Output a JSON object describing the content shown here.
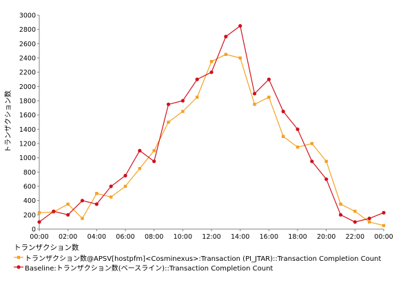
{
  "chart_data": {
    "type": "line",
    "ylabel": "トランザクション数",
    "ylim": [
      0,
      3000
    ],
    "yticks": [
      "0",
      "200",
      "400",
      "600",
      "800",
      "1000",
      "1200",
      "1400",
      "1600",
      "1800",
      "2000",
      "2200",
      "2400",
      "2600",
      "2800",
      "3000"
    ],
    "xticks": [
      "00:00",
      "02:00",
      "04:00",
      "06:00",
      "08:00",
      "10:00",
      "12:00",
      "14:00",
      "16:00",
      "18:00",
      "20:00",
      "22:00",
      "00:00"
    ],
    "x": [
      0,
      1,
      2,
      3,
      4,
      5,
      6,
      7,
      8,
      9,
      10,
      11,
      12,
      13,
      14,
      15,
      16,
      17,
      18,
      19,
      20,
      21,
      22,
      23,
      24
    ],
    "grid": false,
    "legend": {
      "title": "トランザクション数",
      "placement": "bottom"
    },
    "series": [
      {
        "name": "トランザクション数@APSV[hostpfm]<Cosminexus>:Transaction (PI_JTAR)::Transaction Completion Count",
        "color": "#f5a020",
        "marker": "square",
        "values": [
          230,
          240,
          350,
          150,
          500,
          450,
          600,
          850,
          1100,
          1500,
          1650,
          1850,
          2350,
          2450,
          2400,
          1750,
          1850,
          1300,
          1150,
          1200,
          950,
          350,
          250,
          100,
          50
        ]
      },
      {
        "name": "Baseline:トランザクション数(ベースライン)::Transaction Completion Count",
        "color": "#d0101c",
        "marker": "circle",
        "values": [
          100,
          250,
          200,
          400,
          350,
          600,
          750,
          1100,
          950,
          1750,
          1800,
          2100,
          2200,
          2700,
          2850,
          1900,
          2100,
          1650,
          1400,
          950,
          700,
          200,
          100,
          150,
          230
        ]
      }
    ]
  }
}
